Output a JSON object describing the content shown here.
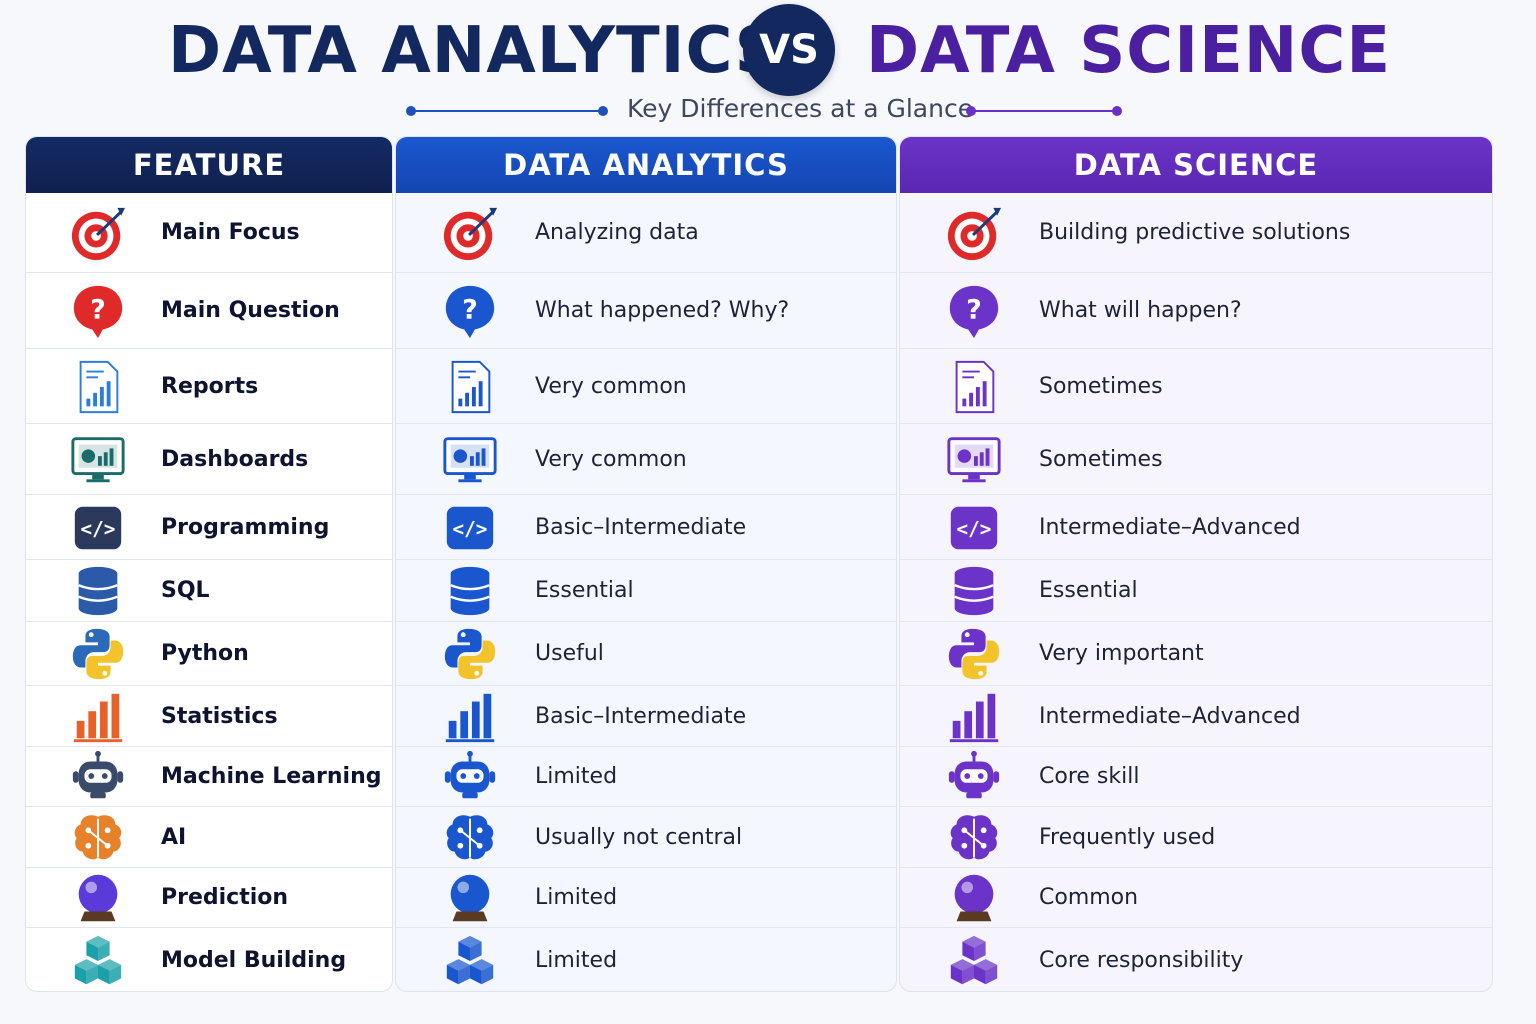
{
  "title": {
    "left": "DATA ANALYTICS",
    "vs": "VS",
    "right": "DATA SCIENCE",
    "subtitle": "Key Differences at a Glance"
  },
  "colors": {
    "navy": "#13285e",
    "blue": "#1a57cf",
    "purple": "#6b33c8"
  },
  "headers": {
    "feature": "FEATURE",
    "analytics": "DATA ANALYTICS",
    "science": "DATA SCIENCE"
  },
  "rows": [
    {
      "feature": "Main Focus",
      "icon": "target-icon",
      "analytics": "Analyzing data",
      "science": "Building predictive solutions"
    },
    {
      "feature": "Main Question",
      "icon": "question-icon",
      "analytics": "What happened? Why?",
      "science": "What will happen?"
    },
    {
      "feature": "Reports",
      "icon": "report-icon",
      "analytics": "Very common",
      "science": "Sometimes"
    },
    {
      "feature": "Dashboards",
      "icon": "dashboard-icon",
      "analytics": "Very common",
      "science": "Sometimes"
    },
    {
      "feature": "Programming",
      "icon": "code-icon",
      "analytics": "Basic–Intermediate",
      "science": "Intermediate–Advanced"
    },
    {
      "feature": "SQL",
      "icon": "database-icon",
      "analytics": "Essential",
      "science": "Essential"
    },
    {
      "feature": "Python",
      "icon": "python-icon",
      "analytics": "Useful",
      "science": "Very important"
    },
    {
      "feature": "Statistics",
      "icon": "bar-chart-icon",
      "analytics": "Basic–Intermediate",
      "science": "Intermediate–Advanced"
    },
    {
      "feature": "Machine Learning",
      "icon": "robot-icon",
      "analytics": "Limited",
      "science": "Core skill"
    },
    {
      "feature": "AI",
      "icon": "brain-icon",
      "analytics": "Usually not central",
      "science": "Frequently used"
    },
    {
      "feature": "Prediction",
      "icon": "crystal-ball-icon",
      "analytics": "Limited",
      "science": "Common"
    },
    {
      "feature": "Model Building",
      "icon": "cubes-icon",
      "analytics": "Limited",
      "science": "Core responsibility"
    }
  ]
}
